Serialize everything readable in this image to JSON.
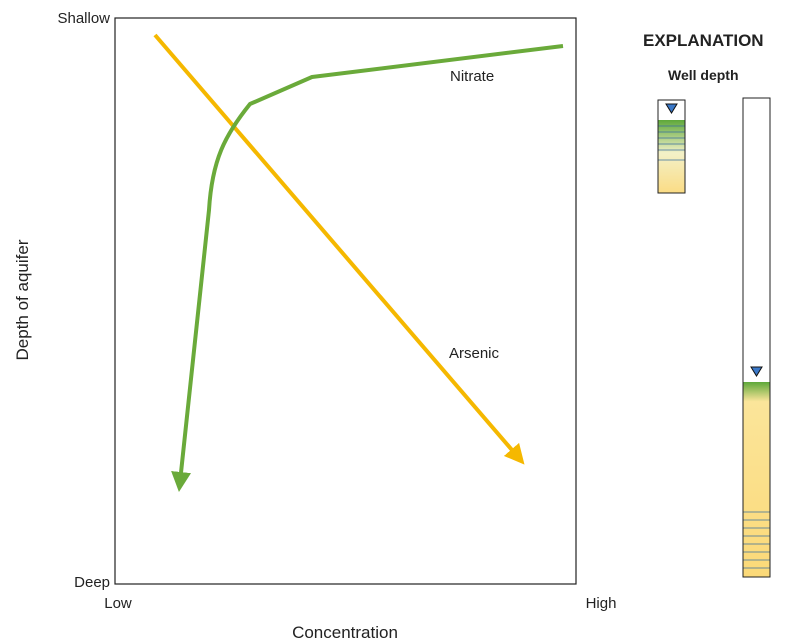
{
  "diagram": {
    "y_axis": {
      "title": "Depth of aquifer",
      "top_label": "Shallow",
      "bottom_label": "Deep"
    },
    "x_axis": {
      "title": "Concentration",
      "left_label": "Low",
      "right_label": "High"
    },
    "curves": [
      {
        "label": "Nitrate"
      },
      {
        "label": "Arsenic"
      }
    ],
    "explanation": {
      "title": "EXPLANATION",
      "subtitle": "Well depth"
    }
  }
}
